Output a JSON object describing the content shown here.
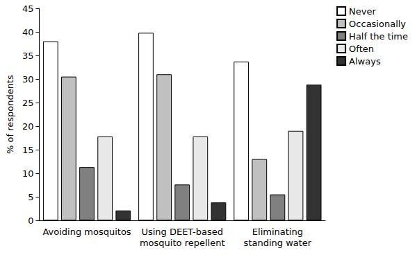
{
  "chart_data": {
    "type": "bar",
    "y_label": "% of respondents",
    "categories": [
      "Avoiding mosquitos",
      "Using DEET-based\nmosquito repellent",
      "Eliminating\nstanding water"
    ],
    "series": [
      {
        "name": "Never",
        "color": "#ffffff",
        "values": [
          38,
          39.8,
          33.7
        ]
      },
      {
        "name": "Occasionally",
        "color": "#c0c0c0",
        "values": [
          30.5,
          31,
          13
        ]
      },
      {
        "name": "Half the time",
        "color": "#808080",
        "values": [
          11.3,
          7.6,
          5.5
        ]
      },
      {
        "name": "Often",
        "color": "#e8e8e8",
        "values": [
          17.8,
          17.8,
          19
        ]
      },
      {
        "name": "Always",
        "color": "#333333",
        "values": [
          2.1,
          3.8,
          28.8
        ]
      }
    ],
    "ylim": [
      0,
      45
    ],
    "yticks": [
      0,
      5,
      10,
      15,
      20,
      25,
      30,
      35,
      40,
      45
    ],
    "grid": false,
    "legend": "top-right"
  }
}
